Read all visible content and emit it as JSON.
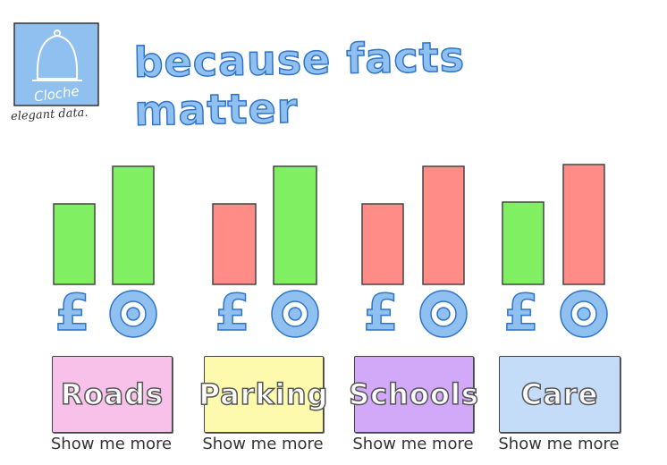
{
  "brand": {
    "logo_text": "Cloche",
    "tagline": "elegant data."
  },
  "headline": "because facts matter",
  "colors": {
    "green": "#80f062",
    "red": "#ff8c87",
    "blue_light": "#8fc0ef",
    "blue_dark": "#2f74c8"
  },
  "chart_data": {
    "type": "bar",
    "categories": [
      "Roads",
      "Parking",
      "Schools",
      "Care"
    ],
    "series": [
      {
        "icon": "pound-icon",
        "values": [
          90,
          90,
          90,
          92
        ],
        "colors": [
          "green",
          "red",
          "red",
          "green"
        ]
      },
      {
        "icon": "target-icon",
        "values": [
          132,
          132,
          132,
          134
        ],
        "colors": [
          "green",
          "green",
          "red",
          "red"
        ]
      }
    ],
    "ylim": [
      0,
      140
    ],
    "grid": false
  },
  "cards": [
    {
      "label": "Roads",
      "bg": "#f7c1ea",
      "more": "Show me more"
    },
    {
      "label": "Parking",
      "bg": "#fdfaad",
      "more": "Show me more"
    },
    {
      "label": "Schools",
      "bg": "#d2a9f8",
      "more": "Show me more"
    },
    {
      "label": "Care",
      "bg": "#c4dcf7",
      "more": "Show me more"
    }
  ]
}
